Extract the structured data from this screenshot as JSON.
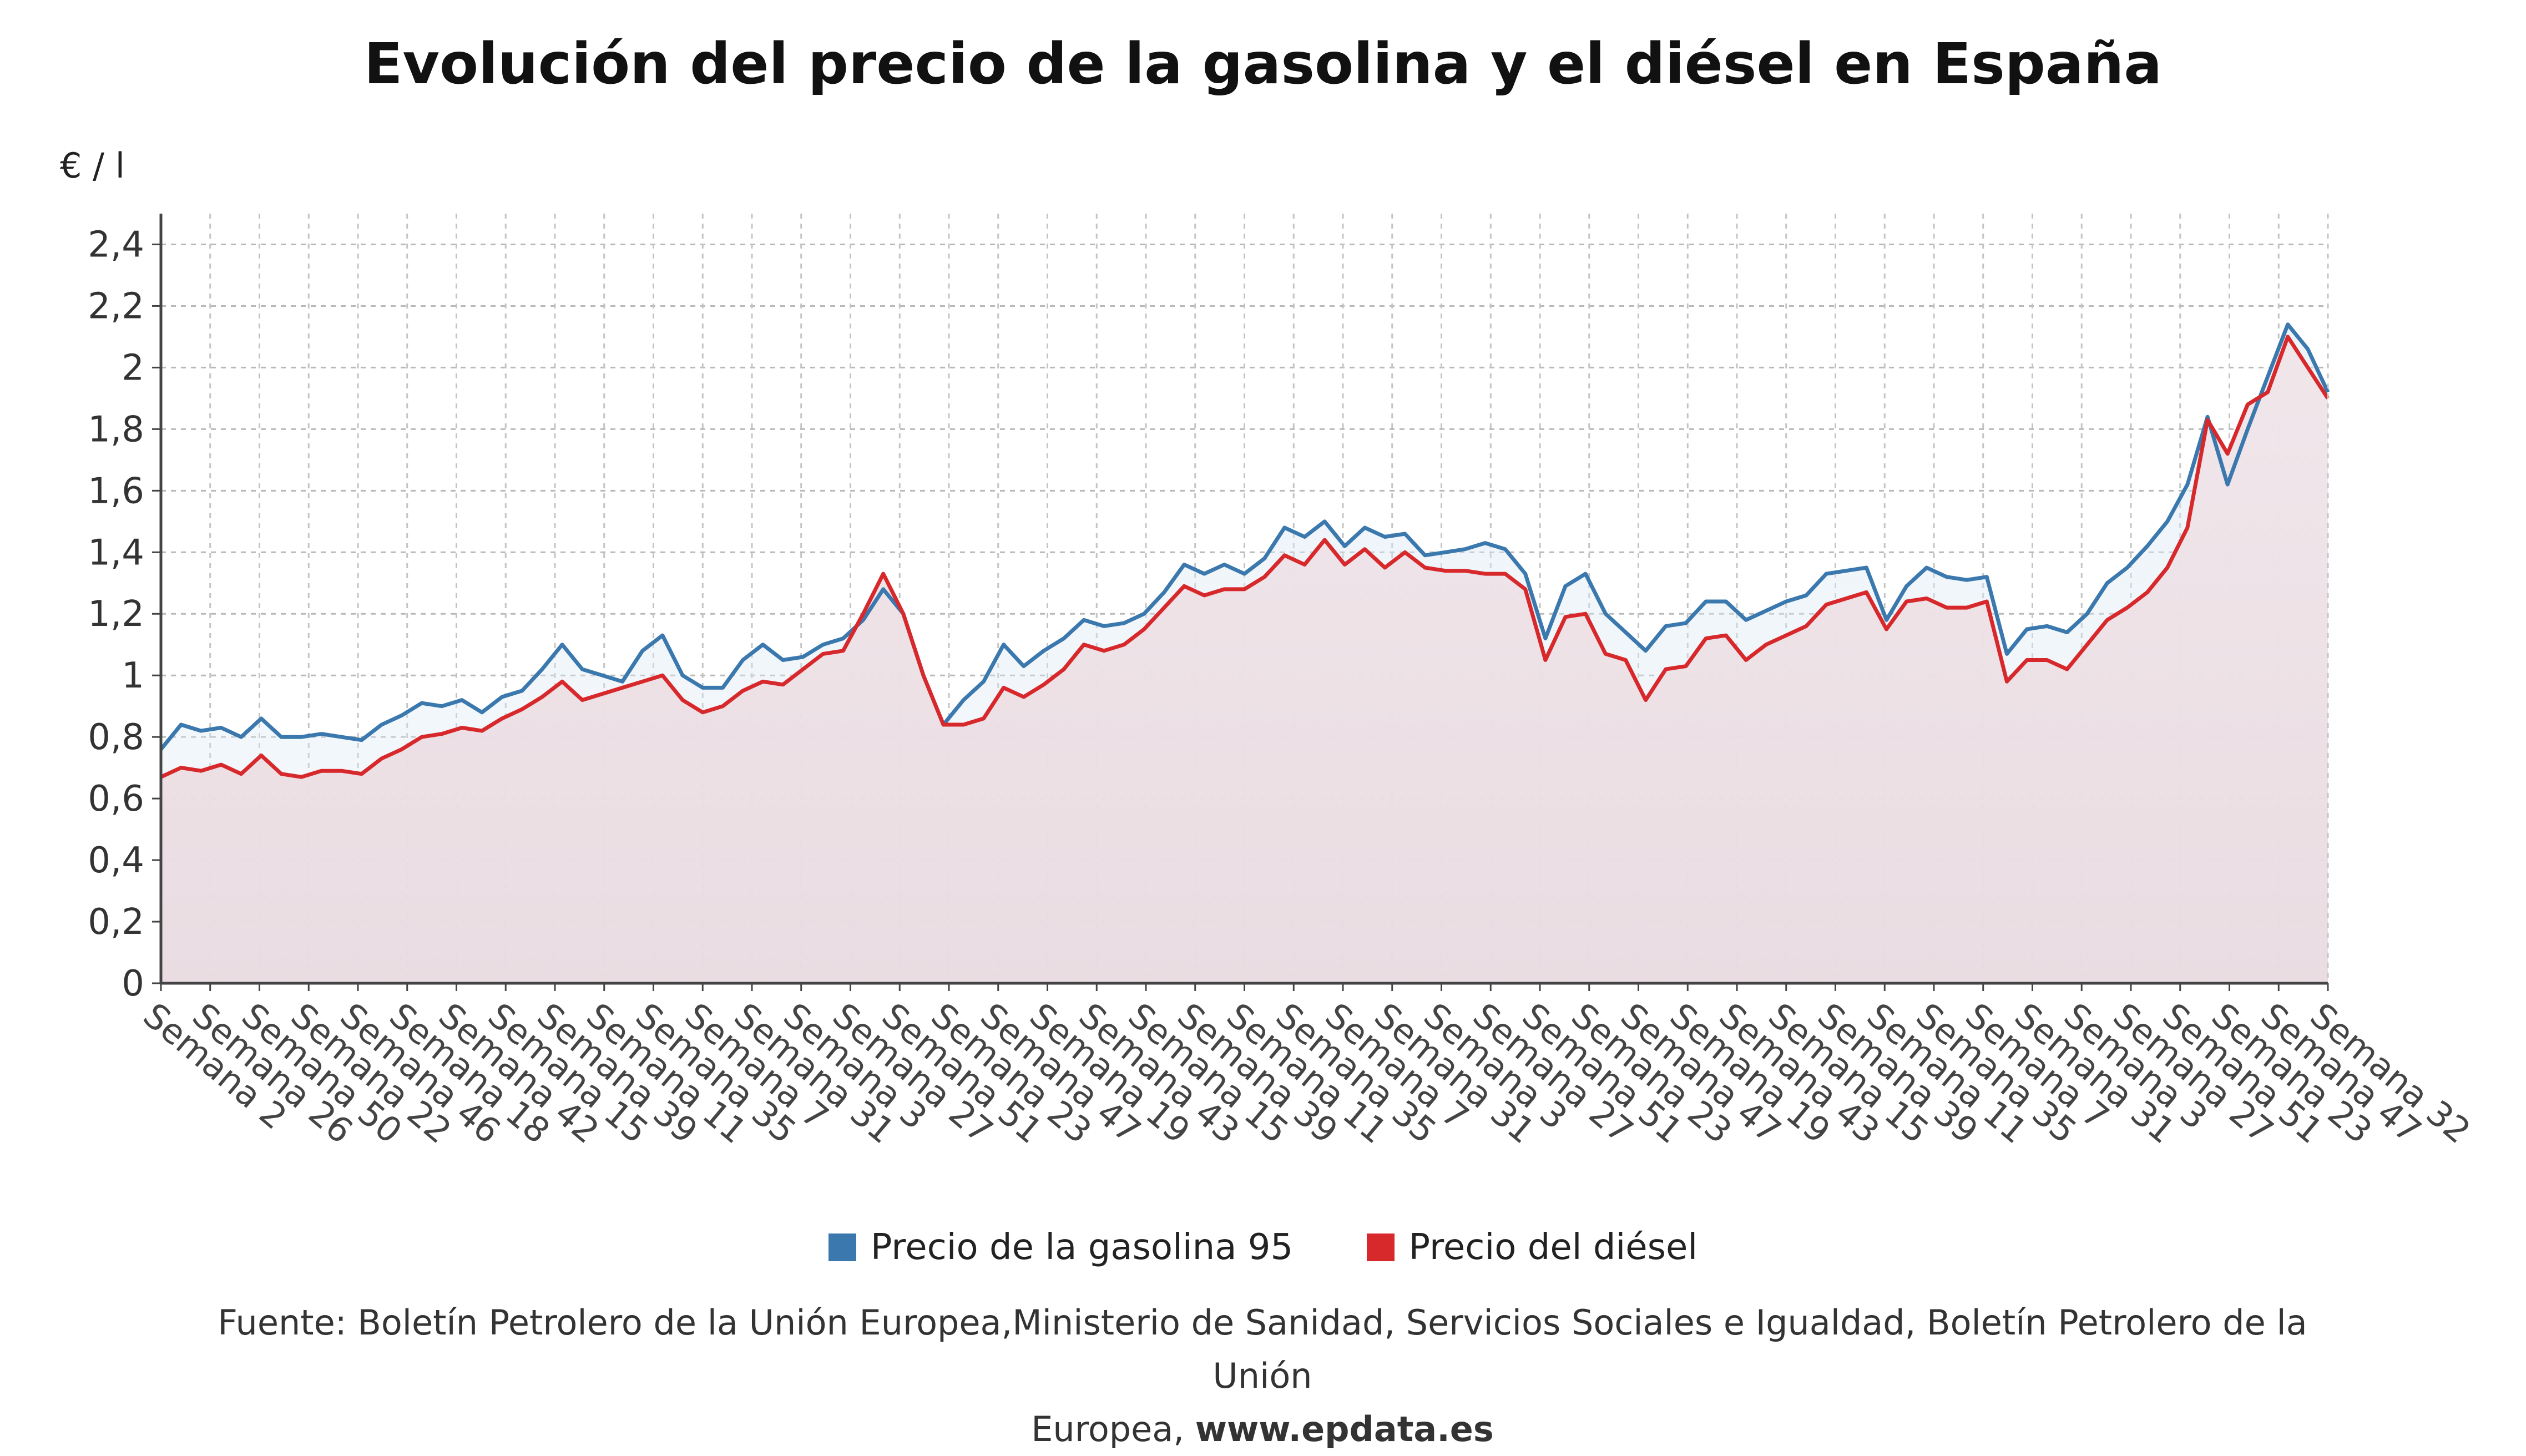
{
  "chart_data": {
    "type": "line",
    "title": "Evolución del precio de la gasolina y el diésel en España",
    "ylabel": "€ / l",
    "ylim": [
      0,
      2.5
    ],
    "yticks": [
      0,
      0.2,
      0.4,
      0.6,
      0.8,
      1,
      1.2,
      1.4,
      1.6,
      1.8,
      2,
      2.2,
      2.4
    ],
    "ytick_labels": [
      "0",
      "0,2",
      "0,4",
      "0,6",
      "0,8",
      "1",
      "1,2",
      "1,4",
      "1,6",
      "1,8",
      "2",
      "2,2",
      "2,4"
    ],
    "grid": true,
    "legend_position": "bottom",
    "x_labels": [
      "Semana 2",
      "Semana 26",
      "Semana 50",
      "Semana 22",
      "Semana 46",
      "Semana 18",
      "Semana 42",
      "Semana 15",
      "Semana 39",
      "Semana 11",
      "Semana 35",
      "Semana 7",
      "Semana 31",
      "Semana 3",
      "Semana 27",
      "Semana 51",
      "Semana 23",
      "Semana 47",
      "Semana 19",
      "Semana 43",
      "Semana 15",
      "Semana 39",
      "Semana 11",
      "Semana 35",
      "Semana 7",
      "Semana 31",
      "Semana 3",
      "Semana 27",
      "Semana 51",
      "Semana 23",
      "Semana 47",
      "Semana 19",
      "Semana 43",
      "Semana 15",
      "Semana 39",
      "Semana 11",
      "Semana 35",
      "Semana 7",
      "Semana 31",
      "Semana 3",
      "Semana 27",
      "Semana 51",
      "Semana 23",
      "Semana 47",
      "Semana 32"
    ],
    "series": [
      {
        "name": "Precio de la gasolina 95",
        "color": "#3a78ad",
        "values": [
          0.76,
          0.84,
          0.82,
          0.83,
          0.8,
          0.86,
          0.8,
          0.8,
          0.81,
          0.8,
          0.79,
          0.84,
          0.87,
          0.91,
          0.9,
          0.92,
          0.88,
          0.93,
          0.95,
          1.02,
          1.1,
          1.02,
          1.0,
          0.98,
          1.08,
          1.13,
          1.0,
          0.96,
          0.96,
          1.05,
          1.1,
          1.05,
          1.06,
          1.1,
          1.12,
          1.18,
          1.28,
          1.2,
          1.0,
          0.84,
          0.92,
          0.98,
          1.1,
          1.03,
          1.08,
          1.12,
          1.18,
          1.16,
          1.17,
          1.2,
          1.27,
          1.36,
          1.33,
          1.36,
          1.33,
          1.38,
          1.48,
          1.45,
          1.5,
          1.42,
          1.48,
          1.45,
          1.46,
          1.39,
          1.4,
          1.41,
          1.43,
          1.41,
          1.33,
          1.12,
          1.29,
          1.33,
          1.2,
          1.14,
          1.08,
          1.16,
          1.17,
          1.24,
          1.24,
          1.18,
          1.21,
          1.24,
          1.26,
          1.33,
          1.34,
          1.35,
          1.18,
          1.29,
          1.35,
          1.32,
          1.31,
          1.32,
          1.07,
          1.15,
          1.16,
          1.14,
          1.2,
          1.3,
          1.35,
          1.42,
          1.5,
          1.62,
          1.84,
          1.62,
          1.8,
          1.97,
          2.14,
          2.06,
          1.92
        ]
      },
      {
        "name": "Precio del diésel",
        "color": "#d7292c",
        "values": [
          0.67,
          0.7,
          0.69,
          0.71,
          0.68,
          0.74,
          0.68,
          0.67,
          0.69,
          0.69,
          0.68,
          0.73,
          0.76,
          0.8,
          0.81,
          0.83,
          0.82,
          0.86,
          0.89,
          0.93,
          0.98,
          0.92,
          0.94,
          0.96,
          0.98,
          1.0,
          0.92,
          0.88,
          0.9,
          0.95,
          0.98,
          0.97,
          1.02,
          1.07,
          1.08,
          1.2,
          1.33,
          1.2,
          1.0,
          0.84,
          0.84,
          0.86,
          0.96,
          0.93,
          0.97,
          1.02,
          1.1,
          1.08,
          1.1,
          1.15,
          1.22,
          1.29,
          1.26,
          1.28,
          1.28,
          1.32,
          1.39,
          1.36,
          1.44,
          1.36,
          1.41,
          1.35,
          1.4,
          1.35,
          1.34,
          1.34,
          1.33,
          1.33,
          1.28,
          1.05,
          1.19,
          1.2,
          1.07,
          1.05,
          0.92,
          1.02,
          1.03,
          1.12,
          1.13,
          1.05,
          1.1,
          1.13,
          1.16,
          1.23,
          1.25,
          1.27,
          1.15,
          1.24,
          1.25,
          1.22,
          1.22,
          1.24,
          0.98,
          1.05,
          1.05,
          1.02,
          1.1,
          1.18,
          1.22,
          1.27,
          1.35,
          1.48,
          1.83,
          1.72,
          1.88,
          1.92,
          2.1,
          2.0,
          1.9
        ]
      }
    ]
  },
  "legend": {
    "items": [
      {
        "label": "Precio de la gasolina 95",
        "color": "#3a78ad"
      },
      {
        "label": "Precio del diésel",
        "color": "#d7292c"
      }
    ]
  },
  "source": {
    "line1": "Fuente: Boletín Petrolero de la Unión Europea,Ministerio de Sanidad, Servicios Sociales e Igualdad, Boletín Petrolero de la Unión",
    "line2_prefix": "Europea, ",
    "line2_link": "www.epdata.es"
  }
}
